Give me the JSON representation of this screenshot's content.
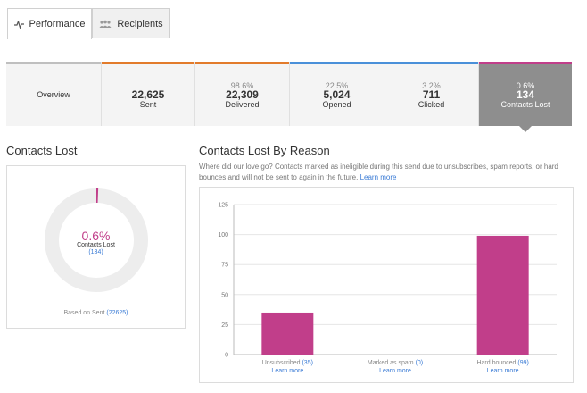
{
  "tabs": [
    {
      "label": "Performance",
      "icon": "activity-icon",
      "active": true
    },
    {
      "label": "Recipients",
      "icon": "people-icon",
      "active": false
    }
  ],
  "stats": [
    {
      "pct": "",
      "value": "",
      "label": "Overview",
      "color": "#bfbfbf"
    },
    {
      "pct": "",
      "value": "22,625",
      "label": "Sent",
      "color": "#e27b2b"
    },
    {
      "pct": "98.6%",
      "value": "22,309",
      "label": "Delivered",
      "color": "#e27b2b"
    },
    {
      "pct": "22.5%",
      "value": "5,024",
      "label": "Opened",
      "color": "#4a90d9"
    },
    {
      "pct": "3.2%",
      "value": "711",
      "label": "Clicked",
      "color": "#4a90d9"
    },
    {
      "pct": "0.6%",
      "value": "134",
      "label": "Contacts Lost",
      "color": "#c13e8a"
    }
  ],
  "contacts_lost": {
    "heading": "Contacts Lost",
    "percent_text": "0.6%",
    "percent_value": 0.6,
    "label": "Contacts Lost",
    "count": "(134)",
    "based_on_prefix": "Based on Sent ",
    "based_on_value": "(22625)",
    "accent": "#c13e8a"
  },
  "reason": {
    "heading": "Contacts Lost By Reason",
    "description": "Where did our love go? Contacts marked as ineligible during this send due to unsubscribes, spam reports, or hard bounces and will not be sent to again in the future. ",
    "learn_more": "Learn more"
  },
  "chart_data": {
    "type": "bar",
    "categories": [
      "Unsubscribed",
      "Marked as spam",
      "Hard bounced"
    ],
    "counts": [
      "(35)",
      "(0)",
      "(99)"
    ],
    "values": [
      35,
      0,
      99
    ],
    "ylim": [
      0,
      125
    ],
    "yticks": [
      0,
      25,
      50,
      75,
      100,
      125
    ],
    "learn_more": "Learn more",
    "bar_color": "#c13e8a",
    "grid": true
  }
}
